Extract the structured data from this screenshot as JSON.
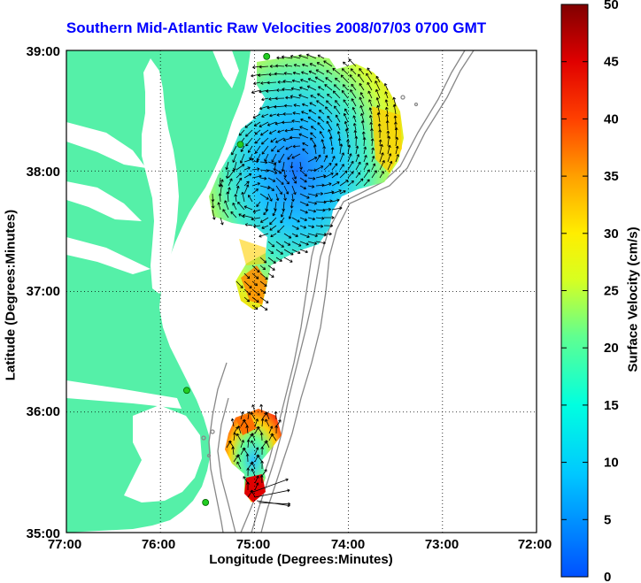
{
  "title": "Southern Mid-Atlantic Raw Velocities 2008/07/03 0700 GMT",
  "xlabel": "Longitude (Degrees:Minutes)",
  "ylabel": "Latitude (Degrees:Minutes)",
  "colorbar_label": "Surface Velocity (cm/s)",
  "x_ticks": [
    "77:00",
    "76:00",
    "75:00",
    "74:00",
    "73:00",
    "72:00"
  ],
  "y_ticks": [
    "39:00",
    "38:00",
    "37:00",
    "36:00",
    "35:00"
  ],
  "colorbar_ticks": [
    "50",
    "45",
    "40",
    "35",
    "30",
    "25",
    "20",
    "15",
    "10",
    "5",
    "0"
  ],
  "colors": {
    "land": "#55f0a8",
    "water": "#ffffff",
    "title": "#0000ff",
    "station": "#22cc22",
    "bathymetry": "#888888"
  },
  "map": {
    "lon_range": [
      -77,
      -72
    ],
    "lat_range": [
      35,
      39
    ],
    "colorbar_range": [
      0,
      50
    ],
    "grid": "dotted"
  },
  "stations": [
    {
      "lon": -74.87,
      "lat": 38.95
    },
    {
      "lon": -75.15,
      "lat": 38.22
    },
    {
      "lon": -75.72,
      "lat": 36.18
    },
    {
      "lon": -75.52,
      "lat": 35.25
    }
  ]
}
